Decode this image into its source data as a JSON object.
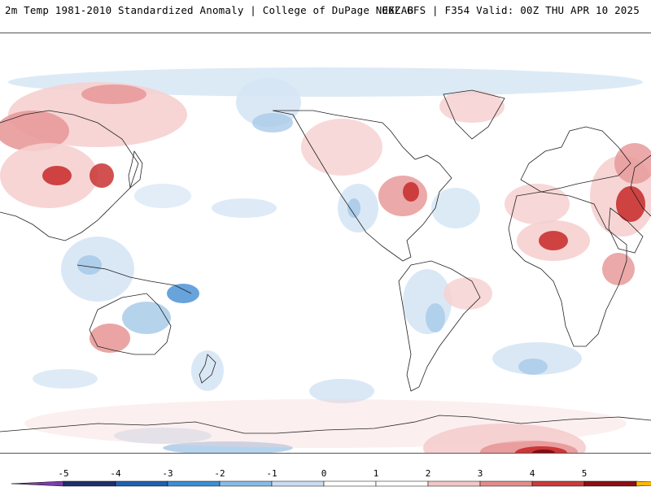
{
  "header": {
    "left_title": "2m Temp 1981-2010 Standardized Anomaly | College of DuPage NEXLAB",
    "right_title": "06Z GFS | F354 Valid: 00Z THU APR 10 2025"
  },
  "colorbar": {
    "labels": [
      "-5",
      "-4",
      "-3",
      "-2",
      "-1",
      "0",
      "1",
      "2",
      "3",
      "4",
      "5"
    ],
    "bins": [
      {
        "color": "#1f2f6b"
      },
      {
        "color": "#2060b0"
      },
      {
        "color": "#3c8fd6"
      },
      {
        "color": "#86bce6"
      },
      {
        "color": "#c8ddf1"
      },
      {
        "color": "#ffffff"
      },
      {
        "color": "#ffffff"
      },
      {
        "color": "#f4c6c6"
      },
      {
        "color": "#e58b8b"
      },
      {
        "color": "#cc3b3b"
      },
      {
        "color": "#8e0e16"
      }
    ],
    "low_arrow_color": "#7a3fa8",
    "high_arrow_color": "#ffb800"
  },
  "map_colors": {
    "ocean": "#ffffff",
    "warm_light": "#f6d0d0",
    "warm_mid": "#e89a9a",
    "warm_strong": "#c93232",
    "warm_extreme": "#7d0b12",
    "cool_light": "#d6e6f5",
    "cool_mid": "#a9cbe9",
    "cool_strong": "#4d93d6",
    "cool_extreme": "#1f4f9e",
    "coast_line": "#222222"
  }
}
